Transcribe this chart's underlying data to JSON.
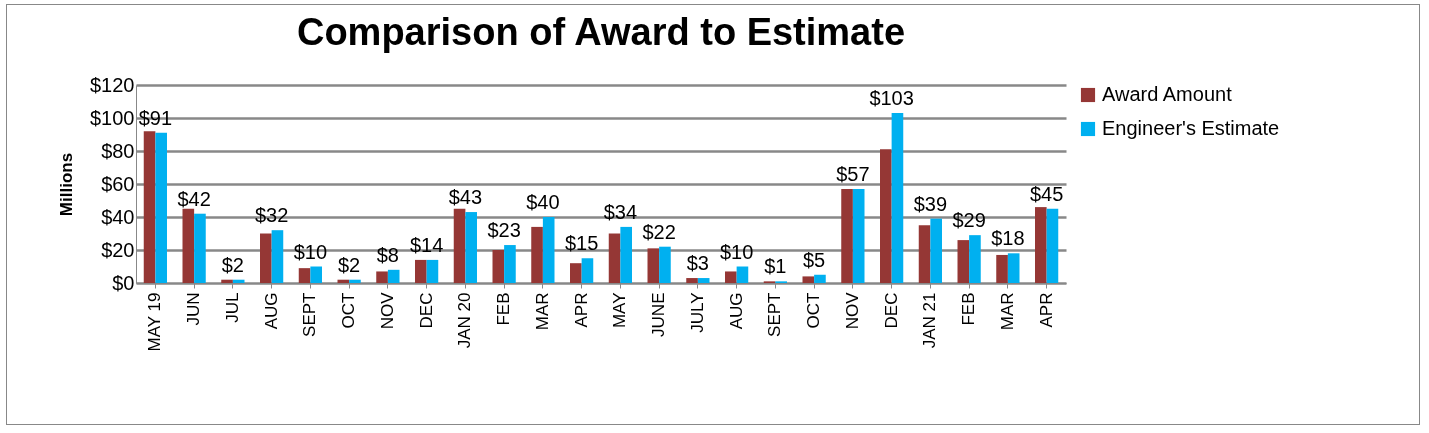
{
  "chart_data": {
    "type": "bar",
    "title": "Comparison of Award to Estimate",
    "ylabel": "Millions",
    "categories": [
      "MAY 19",
      "JUN",
      "JUL",
      "AUG",
      "SEPT",
      "OCT",
      "NOV",
      "DEC",
      "JAN 20",
      "FEB",
      "MAR",
      "APR",
      "MAY",
      "JUNE",
      "JULY",
      "AUG",
      "SEPT",
      "OCT",
      "NOV",
      "DEC",
      "JAN 21",
      "FEB",
      "MAR",
      "APR"
    ],
    "series": [
      {
        "name": "Award Amount",
        "color": "#953735",
        "values": [
          92,
          45,
          2,
          30,
          9,
          2,
          7,
          14,
          45,
          20,
          34,
          12,
          30,
          21,
          3,
          7,
          1,
          4,
          57,
          81,
          35,
          26,
          17,
          46
        ]
      },
      {
        "name": "Engineer's Estimate",
        "color": "#00b0f0",
        "values": [
          91,
          42,
          2,
          32,
          10,
          2,
          8,
          14,
          43,
          23,
          40,
          15,
          34,
          22,
          3,
          10,
          1,
          5,
          57,
          103,
          39,
          29,
          18,
          45
        ],
        "value_labels": [
          "$91",
          "$42",
          "$2",
          "$32",
          "$10",
          "$2",
          "$8",
          "$14",
          "$43",
          "$23",
          "$40",
          "$15",
          "$34",
          "$22",
          "$3",
          "$10",
          "$1",
          "$5",
          "$57",
          "$103",
          "$39",
          "$29",
          "$18",
          "$45"
        ]
      }
    ],
    "ylim": [
      0,
      120
    ],
    "yticks": [
      {
        "value": 0,
        "label": "$0"
      },
      {
        "value": 20,
        "label": "$20"
      },
      {
        "value": 40,
        "label": "$40"
      },
      {
        "value": 60,
        "label": "$60"
      },
      {
        "value": 80,
        "label": "$80"
      },
      {
        "value": 100,
        "label": "$100"
      },
      {
        "value": 120,
        "label": "$120"
      }
    ],
    "grid": "y",
    "legend": "right"
  }
}
